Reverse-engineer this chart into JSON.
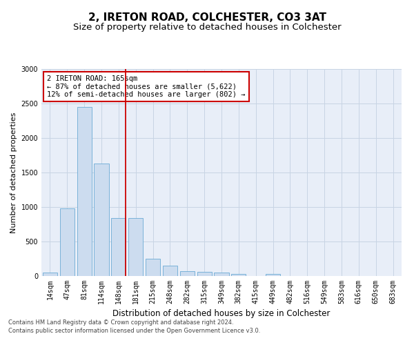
{
  "title": "2, IRETON ROAD, COLCHESTER, CO3 3AT",
  "subtitle": "Size of property relative to detached houses in Colchester",
  "xlabel": "Distribution of detached houses by size in Colchester",
  "ylabel": "Number of detached properties",
  "categories": [
    "14sqm",
    "47sqm",
    "81sqm",
    "114sqm",
    "148sqm",
    "181sqm",
    "215sqm",
    "248sqm",
    "282sqm",
    "315sqm",
    "349sqm",
    "382sqm",
    "415sqm",
    "449sqm",
    "482sqm",
    "516sqm",
    "549sqm",
    "583sqm",
    "616sqm",
    "650sqm",
    "683sqm"
  ],
  "values": [
    55,
    980,
    2450,
    1630,
    840,
    840,
    250,
    150,
    75,
    60,
    55,
    30,
    0,
    30,
    0,
    0,
    0,
    0,
    0,
    0,
    0
  ],
  "bar_color": "#ccdcef",
  "bar_edge_color": "#6aaad4",
  "vline_color": "#cc0000",
  "vline_pos": 4.42,
  "annotation_text": "2 IRETON ROAD: 165sqm\n← 87% of detached houses are smaller (5,622)\n12% of semi-detached houses are larger (802) →",
  "annotation_box_color": "#cc0000",
  "ylim": [
    0,
    3000
  ],
  "yticks": [
    0,
    500,
    1000,
    1500,
    2000,
    2500,
    3000
  ],
  "grid_color": "#c8d4e4",
  "background_color": "#e8eef8",
  "footer_line1": "Contains HM Land Registry data © Crown copyright and database right 2024.",
  "footer_line2": "Contains public sector information licensed under the Open Government Licence v3.0.",
  "title_fontsize": 11,
  "subtitle_fontsize": 9.5,
  "xlabel_fontsize": 8.5,
  "ylabel_fontsize": 8,
  "footer_fontsize": 6,
  "annot_fontsize": 7.5,
  "tick_fontsize": 7
}
